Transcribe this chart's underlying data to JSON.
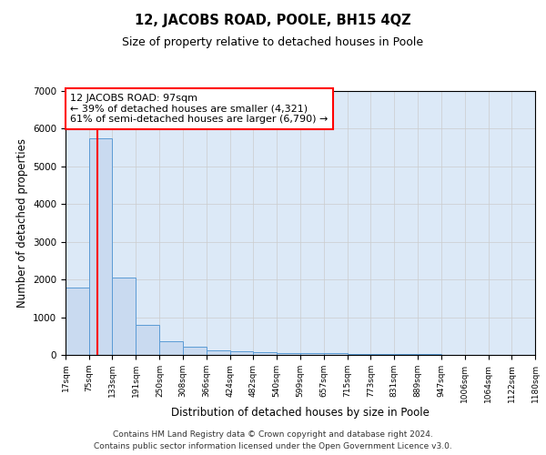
{
  "title": "12, JACOBS ROAD, POOLE, BH15 4QZ",
  "subtitle": "Size of property relative to detached houses in Poole",
  "xlabel": "Distribution of detached houses by size in Poole",
  "ylabel": "Number of detached properties",
  "bin_edges": [
    17,
    75,
    133,
    191,
    250,
    308,
    366,
    424,
    482,
    540,
    599,
    657,
    715,
    773,
    831,
    889,
    947,
    1006,
    1064,
    1122,
    1180
  ],
  "bin_labels": [
    "17sqm",
    "75sqm",
    "133sqm",
    "191sqm",
    "250sqm",
    "308sqm",
    "366sqm",
    "424sqm",
    "482sqm",
    "540sqm",
    "599sqm",
    "657sqm",
    "715sqm",
    "773sqm",
    "831sqm",
    "889sqm",
    "947sqm",
    "1006sqm",
    "1064sqm",
    "1122sqm",
    "1180sqm"
  ],
  "counts": [
    1780,
    5750,
    2060,
    800,
    360,
    210,
    120,
    90,
    70,
    60,
    50,
    40,
    30,
    25,
    20,
    15,
    12,
    10,
    8,
    6
  ],
  "bar_color": "#c9daf0",
  "bar_edge_color": "#5b9bd5",
  "property_size": 97,
  "red_line_color": "#ff0000",
  "annotation_line1": "12 JACOBS ROAD: 97sqm",
  "annotation_line2": "← 39% of detached houses are smaller (4,321)",
  "annotation_line3": "61% of semi-detached houses are larger (6,790) →",
  "annotation_box_color": "#ffffff",
  "annotation_box_edge": "#ff0000",
  "ylim": [
    0,
    7000
  ],
  "yticks": [
    0,
    1000,
    2000,
    3000,
    4000,
    5000,
    6000,
    7000
  ],
  "grid_color": "#cccccc",
  "background_color": "#dce9f7",
  "footer_line1": "Contains HM Land Registry data © Crown copyright and database right 2024.",
  "footer_line2": "Contains public sector information licensed under the Open Government Licence v3.0."
}
